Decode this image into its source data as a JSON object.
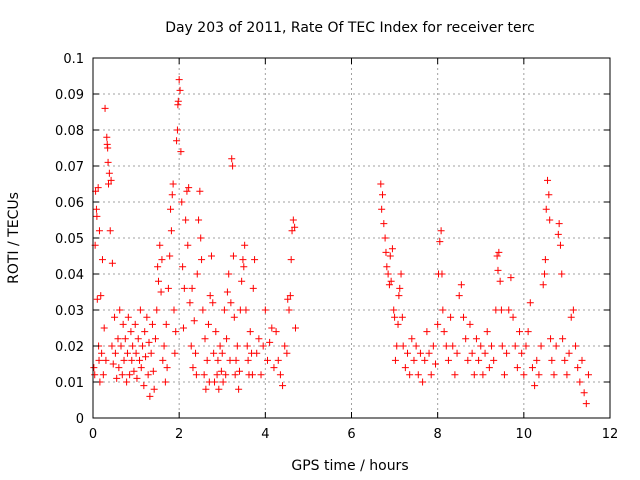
{
  "chart_data": {
    "type": "scatter",
    "title": "Day 203 of 2011, Rate Of TEC Index for receiver terc",
    "xlabel": "GPS time / hours",
    "ylabel": "ROTI / TECUs",
    "xlim": [
      0,
      12
    ],
    "ylim": [
      0,
      0.1
    ],
    "x_ticks": [
      0,
      2,
      4,
      6,
      8,
      10,
      12
    ],
    "x_tick_labels": [
      "0",
      "2",
      "4",
      "6",
      "8",
      "10",
      "12"
    ],
    "y_ticks": [
      0,
      0.01,
      0.02,
      0.03,
      0.04,
      0.05,
      0.06,
      0.07,
      0.08,
      0.09,
      0.1
    ],
    "y_tick_labels": [
      "0",
      "0.01",
      "0.02",
      "0.03",
      "0.04",
      "0.05",
      "0.06",
      "0.07",
      "0.08",
      "0.09",
      "0.1"
    ],
    "grid": true,
    "legend": "none",
    "marker": "plus",
    "color": "#ff0000",
    "series": [
      {
        "points": [
          [
            0.02,
            0.014
          ],
          [
            0.04,
            0.012
          ],
          [
            0.05,
            0.048
          ],
          [
            0.06,
            0.063
          ],
          [
            0.08,
            0.058
          ],
          [
            0.09,
            0.056
          ],
          [
            0.1,
            0.033
          ],
          [
            0.12,
            0.064
          ],
          [
            0.13,
            0.02
          ],
          [
            0.14,
            0.016
          ],
          [
            0.15,
            0.052
          ],
          [
            0.16,
            0.01
          ],
          [
            0.18,
            0.034
          ],
          [
            0.2,
            0.018
          ],
          [
            0.22,
            0.044
          ],
          [
            0.24,
            0.012
          ],
          [
            0.26,
            0.025
          ],
          [
            0.28,
            0.086
          ],
          [
            0.3,
            0.016
          ],
          [
            0.32,
            0.078
          ],
          [
            0.33,
            0.076
          ],
          [
            0.34,
            0.075
          ],
          [
            0.35,
            0.071
          ],
          [
            0.36,
            0.065
          ],
          [
            0.38,
            0.068
          ],
          [
            0.4,
            0.052
          ],
          [
            0.42,
            0.066
          ],
          [
            0.44,
            0.02
          ],
          [
            0.45,
            0.043
          ],
          [
            0.47,
            0.015
          ],
          [
            0.5,
            0.028
          ],
          [
            0.52,
            0.018
          ],
          [
            0.55,
            0.011
          ],
          [
            0.58,
            0.022
          ],
          [
            0.6,
            0.014
          ],
          [
            0.62,
            0.03
          ],
          [
            0.65,
            0.02
          ],
          [
            0.68,
            0.012
          ],
          [
            0.7,
            0.026
          ],
          [
            0.72,
            0.016
          ],
          [
            0.75,
            0.022
          ],
          [
            0.78,
            0.01
          ],
          [
            0.8,
            0.018
          ],
          [
            0.82,
            0.028
          ],
          [
            0.85,
            0.012
          ],
          [
            0.88,
            0.024
          ],
          [
            0.9,
            0.016
          ],
          [
            0.92,
            0.02
          ],
          [
            0.95,
            0.013
          ],
          [
            0.98,
            0.026
          ],
          [
            1.0,
            0.018
          ],
          [
            1.02,
            0.011
          ],
          [
            1.05,
            0.022
          ],
          [
            1.08,
            0.016
          ],
          [
            1.1,
            0.03
          ],
          [
            1.12,
            0.014
          ],
          [
            1.15,
            0.02
          ],
          [
            1.18,
            0.009
          ],
          [
            1.2,
            0.024
          ],
          [
            1.22,
            0.017
          ],
          [
            1.25,
            0.028
          ],
          [
            1.28,
            0.012
          ],
          [
            1.3,
            0.021
          ],
          [
            1.32,
            0.006
          ],
          [
            1.35,
            0.018
          ],
          [
            1.38,
            0.026
          ],
          [
            1.4,
            0.013
          ],
          [
            1.42,
            0.008
          ],
          [
            1.45,
            0.022
          ],
          [
            1.48,
            0.03
          ],
          [
            1.5,
            0.042
          ],
          [
            1.52,
            0.038
          ],
          [
            1.55,
            0.048
          ],
          [
            1.58,
            0.035
          ],
          [
            1.6,
            0.044
          ],
          [
            1.62,
            0.016
          ],
          [
            1.65,
            0.02
          ],
          [
            1.68,
            0.01
          ],
          [
            1.7,
            0.026
          ],
          [
            1.72,
            0.014
          ],
          [
            1.75,
            0.036
          ],
          [
            1.78,
            0.045
          ],
          [
            1.8,
            0.058
          ],
          [
            1.82,
            0.052
          ],
          [
            1.84,
            0.062
          ],
          [
            1.86,
            0.065
          ],
          [
            1.88,
            0.03
          ],
          [
            1.9,
            0.018
          ],
          [
            1.92,
            0.024
          ],
          [
            1.94,
            0.077
          ],
          [
            1.96,
            0.08
          ],
          [
            1.97,
            0.087
          ],
          [
            1.98,
            0.088
          ],
          [
            2.0,
            0.094
          ],
          [
            2.02,
            0.091
          ],
          [
            2.04,
            0.074
          ],
          [
            2.06,
            0.06
          ],
          [
            2.08,
            0.042
          ],
          [
            2.1,
            0.025
          ],
          [
            2.12,
            0.036
          ],
          [
            2.15,
            0.055
          ],
          [
            2.18,
            0.063
          ],
          [
            2.2,
            0.048
          ],
          [
            2.22,
            0.064
          ],
          [
            2.25,
            0.032
          ],
          [
            2.28,
            0.02
          ],
          [
            2.3,
            0.036
          ],
          [
            2.32,
            0.014
          ],
          [
            2.35,
            0.027
          ],
          [
            2.38,
            0.018
          ],
          [
            2.4,
            0.012
          ],
          [
            2.42,
            0.04
          ],
          [
            2.45,
            0.055
          ],
          [
            2.48,
            0.063
          ],
          [
            2.5,
            0.05
          ],
          [
            2.52,
            0.044
          ],
          [
            2.55,
            0.03
          ],
          [
            2.58,
            0.012
          ],
          [
            2.6,
            0.022
          ],
          [
            2.62,
            0.008
          ],
          [
            2.65,
            0.016
          ],
          [
            2.68,
            0.026
          ],
          [
            2.7,
            0.01
          ],
          [
            2.72,
            0.034
          ],
          [
            2.75,
            0.045
          ],
          [
            2.78,
            0.032
          ],
          [
            2.8,
            0.018
          ],
          [
            2.82,
            0.01
          ],
          [
            2.85,
            0.024
          ],
          [
            2.88,
            0.012
          ],
          [
            2.9,
            0.016
          ],
          [
            2.92,
            0.008
          ],
          [
            2.95,
            0.02
          ],
          [
            2.98,
            0.013
          ],
          [
            3.0,
            0.018
          ],
          [
            3.02,
            0.01
          ],
          [
            3.05,
            0.03
          ],
          [
            3.08,
            0.012
          ],
          [
            3.1,
            0.022
          ],
          [
            3.12,
            0.035
          ],
          [
            3.15,
            0.04
          ],
          [
            3.18,
            0.016
          ],
          [
            3.2,
            0.032
          ],
          [
            3.22,
            0.072
          ],
          [
            3.24,
            0.07
          ],
          [
            3.26,
            0.045
          ],
          [
            3.28,
            0.028
          ],
          [
            3.3,
            0.012
          ],
          [
            3.32,
            0.016
          ],
          [
            3.35,
            0.02
          ],
          [
            3.38,
            0.008
          ],
          [
            3.4,
            0.013
          ],
          [
            3.42,
            0.03
          ],
          [
            3.45,
            0.038
          ],
          [
            3.48,
            0.044
          ],
          [
            3.5,
            0.042
          ],
          [
            3.52,
            0.048
          ],
          [
            3.55,
            0.03
          ],
          [
            3.58,
            0.02
          ],
          [
            3.6,
            0.016
          ],
          [
            3.62,
            0.012
          ],
          [
            3.65,
            0.024
          ],
          [
            3.68,
            0.018
          ],
          [
            3.7,
            0.012
          ],
          [
            3.72,
            0.036
          ],
          [
            3.75,
            0.044
          ],
          [
            3.8,
            0.018
          ],
          [
            3.85,
            0.022
          ],
          [
            3.9,
            0.012
          ],
          [
            3.95,
            0.02
          ],
          [
            4.0,
            0.03
          ],
          [
            4.05,
            0.016
          ],
          [
            4.1,
            0.021
          ],
          [
            4.15,
            0.025
          ],
          [
            4.2,
            0.014
          ],
          [
            4.25,
            0.024
          ],
          [
            4.3,
            0.016
          ],
          [
            4.35,
            0.012
          ],
          [
            4.4,
            0.009
          ],
          [
            4.45,
            0.02
          ],
          [
            4.5,
            0.018
          ],
          [
            4.52,
            0.033
          ],
          [
            4.55,
            0.03
          ],
          [
            4.58,
            0.034
          ],
          [
            4.6,
            0.044
          ],
          [
            4.62,
            0.052
          ],
          [
            4.65,
            0.055
          ],
          [
            4.68,
            0.053
          ],
          [
            4.7,
            0.025
          ],
          [
            6.68,
            0.065
          ],
          [
            6.7,
            0.058
          ],
          [
            6.72,
            0.062
          ],
          [
            6.75,
            0.054
          ],
          [
            6.78,
            0.05
          ],
          [
            6.8,
            0.046
          ],
          [
            6.82,
            0.042
          ],
          [
            6.85,
            0.04
          ],
          [
            6.88,
            0.037
          ],
          [
            6.9,
            0.045
          ],
          [
            6.92,
            0.038
          ],
          [
            6.95,
            0.047
          ],
          [
            6.98,
            0.03
          ],
          [
            7.0,
            0.028
          ],
          [
            7.02,
            0.016
          ],
          [
            7.05,
            0.02
          ],
          [
            7.08,
            0.026
          ],
          [
            7.1,
            0.034
          ],
          [
            7.12,
            0.036
          ],
          [
            7.15,
            0.04
          ],
          [
            7.18,
            0.028
          ],
          [
            7.2,
            0.02
          ],
          [
            7.25,
            0.014
          ],
          [
            7.3,
            0.018
          ],
          [
            7.35,
            0.012
          ],
          [
            7.4,
            0.022
          ],
          [
            7.45,
            0.016
          ],
          [
            7.5,
            0.02
          ],
          [
            7.55,
            0.012
          ],
          [
            7.6,
            0.018
          ],
          [
            7.65,
            0.01
          ],
          [
            7.7,
            0.016
          ],
          [
            7.75,
            0.024
          ],
          [
            7.8,
            0.018
          ],
          [
            7.85,
            0.012
          ],
          [
            7.9,
            0.02
          ],
          [
            7.95,
            0.015
          ],
          [
            8.0,
            0.026
          ],
          [
            8.02,
            0.04
          ],
          [
            8.05,
            0.049
          ],
          [
            8.08,
            0.052
          ],
          [
            8.1,
            0.04
          ],
          [
            8.12,
            0.03
          ],
          [
            8.15,
            0.024
          ],
          [
            8.2,
            0.02
          ],
          [
            8.25,
            0.016
          ],
          [
            8.3,
            0.028
          ],
          [
            8.35,
            0.02
          ],
          [
            8.4,
            0.012
          ],
          [
            8.45,
            0.018
          ],
          [
            8.5,
            0.034
          ],
          [
            8.55,
            0.037
          ],
          [
            8.6,
            0.028
          ],
          [
            8.65,
            0.022
          ],
          [
            8.7,
            0.016
          ],
          [
            8.75,
            0.026
          ],
          [
            8.8,
            0.018
          ],
          [
            8.85,
            0.012
          ],
          [
            8.9,
            0.022
          ],
          [
            8.95,
            0.016
          ],
          [
            9.0,
            0.02
          ],
          [
            9.05,
            0.012
          ],
          [
            9.1,
            0.018
          ],
          [
            9.15,
            0.024
          ],
          [
            9.2,
            0.014
          ],
          [
            9.25,
            0.02
          ],
          [
            9.3,
            0.016
          ],
          [
            9.35,
            0.03
          ],
          [
            9.38,
            0.045
          ],
          [
            9.4,
            0.041
          ],
          [
            9.42,
            0.046
          ],
          [
            9.45,
            0.038
          ],
          [
            9.48,
            0.03
          ],
          [
            9.5,
            0.02
          ],
          [
            9.55,
            0.012
          ],
          [
            9.6,
            0.018
          ],
          [
            9.65,
            0.03
          ],
          [
            9.7,
            0.039
          ],
          [
            9.75,
            0.028
          ],
          [
            9.8,
            0.02
          ],
          [
            9.85,
            0.014
          ],
          [
            9.9,
            0.024
          ],
          [
            9.95,
            0.018
          ],
          [
            10.0,
            0.012
          ],
          [
            10.05,
            0.02
          ],
          [
            10.1,
            0.024
          ],
          [
            10.15,
            0.032
          ],
          [
            10.2,
            0.014
          ],
          [
            10.25,
            0.009
          ],
          [
            10.3,
            0.016
          ],
          [
            10.35,
            0.012
          ],
          [
            10.4,
            0.02
          ],
          [
            10.45,
            0.037
          ],
          [
            10.48,
            0.04
          ],
          [
            10.5,
            0.044
          ],
          [
            10.52,
            0.058
          ],
          [
            10.55,
            0.066
          ],
          [
            10.58,
            0.062
          ],
          [
            10.6,
            0.055
          ],
          [
            10.62,
            0.022
          ],
          [
            10.65,
            0.016
          ],
          [
            10.7,
            0.012
          ],
          [
            10.75,
            0.02
          ],
          [
            10.8,
            0.051
          ],
          [
            10.82,
            0.054
          ],
          [
            10.85,
            0.048
          ],
          [
            10.88,
            0.04
          ],
          [
            10.9,
            0.022
          ],
          [
            10.95,
            0.016
          ],
          [
            11.0,
            0.012
          ],
          [
            11.05,
            0.018
          ],
          [
            11.1,
            0.028
          ],
          [
            11.15,
            0.03
          ],
          [
            11.2,
            0.02
          ],
          [
            11.25,
            0.014
          ],
          [
            11.3,
            0.01
          ],
          [
            11.35,
            0.016
          ],
          [
            11.4,
            0.007
          ],
          [
            11.45,
            0.004
          ],
          [
            11.5,
            0.012
          ]
        ]
      }
    ]
  }
}
